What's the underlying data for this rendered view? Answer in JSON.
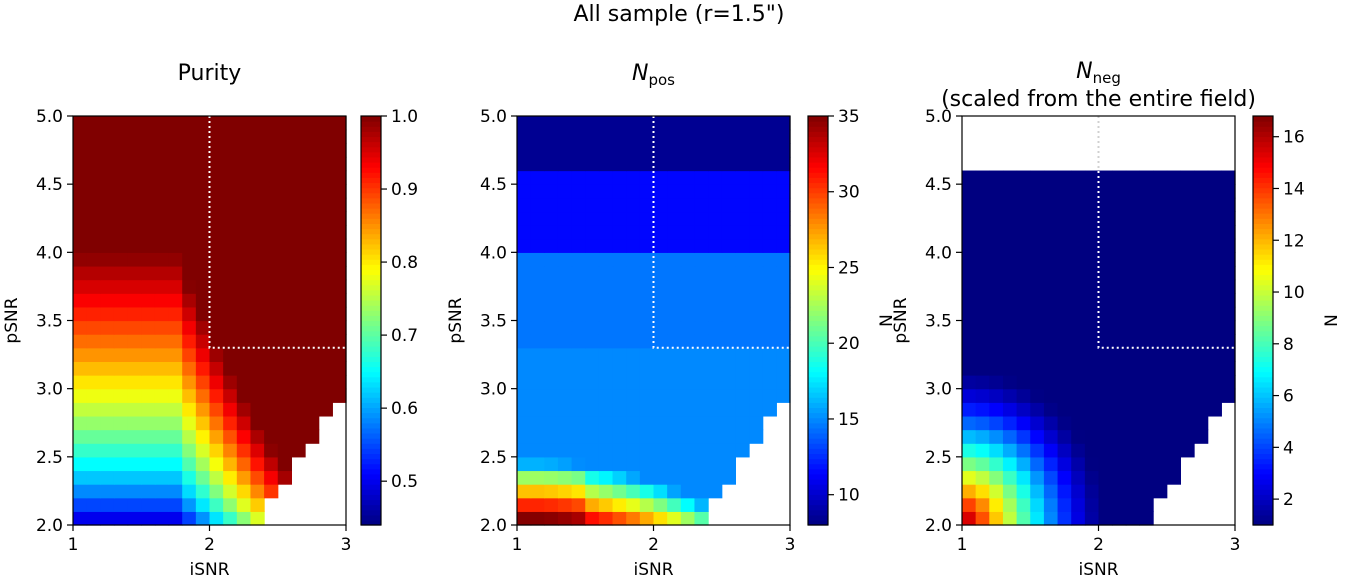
{
  "suptitle": "All sample (r=1.5\")",
  "chart_data": [
    {
      "type": "heatmap",
      "title": "Purity",
      "xlabel": "iSNR",
      "ylabel": "pSNR",
      "xlim": [
        1,
        3
      ],
      "ylim": [
        2.0,
        5.0
      ],
      "xticks": [
        "1",
        "2",
        "3"
      ],
      "yticks": [
        "2.0",
        "2.5",
        "3.0",
        "3.5",
        "4.0",
        "4.5",
        "5.0"
      ],
      "colormap": "jet",
      "colorbar": {
        "label": "",
        "min": 0.44,
        "max": 1.0,
        "ticks": [
          "0.5",
          "0.6",
          "0.7",
          "0.8",
          "0.9",
          "1.0"
        ],
        "tick_values": [
          0.5,
          0.6,
          0.7,
          0.8,
          0.9,
          1.0
        ]
      },
      "threshold_box": {
        "isnr": 2.0,
        "psnr": 3.3
      },
      "grid": {
        "x_start": 1.0,
        "x_step": 0.1,
        "y_start": 2.0,
        "y_step": 0.1,
        "cols": 20,
        "rows": 30,
        "valid_boundary": "pSNR >= 1.5*iSNR - 1.5"
      },
      "value_model": "purity rises from about 0.46 at (iSNR 1, pSNR 2.0) to 1.0 above pSNR about 4.0"
    },
    {
      "type": "heatmap",
      "title": "N",
      "title_subscript": "pos",
      "xlabel": "iSNR",
      "ylabel": "pSNR",
      "xlim": [
        1,
        3
      ],
      "ylim": [
        2.0,
        5.0
      ],
      "xticks": [
        "1",
        "2",
        "3"
      ],
      "yticks": [
        "2.0",
        "2.5",
        "3.0",
        "3.5",
        "4.0",
        "4.5",
        "5.0"
      ],
      "colormap": "jet",
      "colorbar": {
        "label": "N",
        "min": 8,
        "max": 35,
        "ticks": [
          "10",
          "15",
          "20",
          "25",
          "30",
          "35"
        ],
        "tick_values": [
          10,
          15,
          20,
          25,
          30,
          35
        ]
      },
      "threshold_box": {
        "isnr": 2.0,
        "psnr": 3.3
      },
      "grid": {
        "x_start": 1.0,
        "x_step": 0.1,
        "y_start": 2.0,
        "y_step": 0.1,
        "cols": 20,
        "rows": 30,
        "valid_boundary": "pSNR >= 1.5*iSNR - 1.5"
      },
      "value_model": "counts fall from about 35 near (1.1, 2.0) to about 8 above pSNR 4.6"
    },
    {
      "type": "heatmap",
      "title": "N",
      "title_subscript": "neg",
      "title_line2": "(scaled from the entire field)",
      "xlabel": "iSNR",
      "ylabel": "pSNR",
      "xlim": [
        1,
        3
      ],
      "ylim": [
        2.0,
        5.0
      ],
      "xticks": [
        "1",
        "2",
        "3"
      ],
      "yticks": [
        "2.0",
        "2.5",
        "3.0",
        "3.5",
        "4.0",
        "4.5",
        "5.0"
      ],
      "colormap": "jet",
      "colorbar": {
        "label": "N",
        "min": 1,
        "max": 16.8,
        "ticks": [
          "2",
          "4",
          "6",
          "8",
          "10",
          "12",
          "14",
          "16"
        ],
        "tick_values": [
          2,
          4,
          6,
          8,
          10,
          12,
          14,
          16
        ]
      },
      "threshold_box": {
        "isnr": 2.0,
        "psnr": 3.3
      },
      "grid": {
        "x_start": 1.0,
        "x_step": 0.1,
        "y_start": 2.0,
        "y_step": 0.1,
        "cols": 20,
        "rows": 30,
        "valid_boundary": "pSNR >= 1.5*iSNR - 1.5",
        "empty_above_psnr": 4.6
      },
      "value_model": "counts fall from about 16.8 at (1, 2.0) to about 1 for pSNR above 3.3"
    }
  ]
}
